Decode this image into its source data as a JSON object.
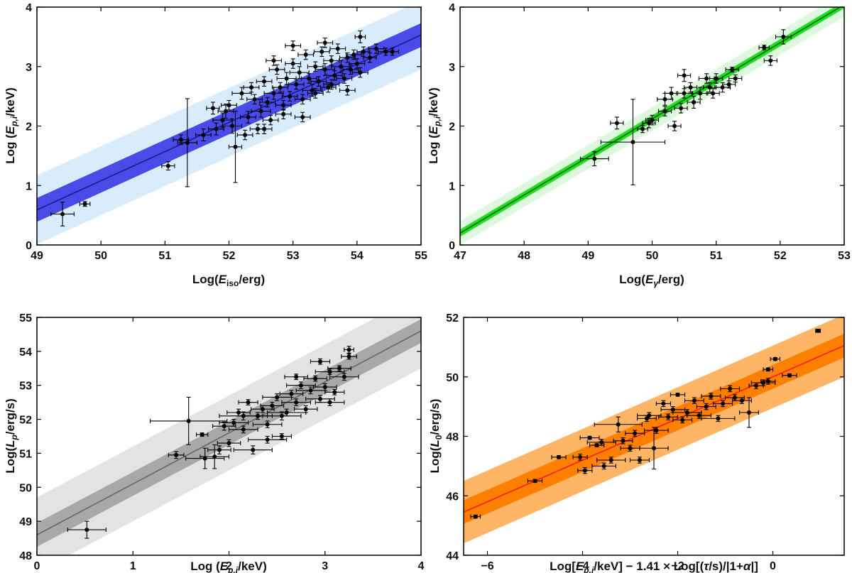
{
  "chart_data": [
    {
      "id": "amati",
      "type": "scatter",
      "xlabel": {
        "pre": "Log(",
        "main": "E",
        "sub": "iso",
        "post": "/erg)"
      },
      "ylabel": {
        "pre": "Log (",
        "main": "E",
        "sub": "p,i",
        "post": "/keV)"
      },
      "xlim": [
        49,
        55
      ],
      "ylim": [
        0,
        4
      ],
      "xticks": [
        49,
        50,
        51,
        52,
        53,
        54,
        55
      ],
      "yticks": [
        0,
        1,
        2,
        3,
        4
      ],
      "fit": {
        "slope": 0.49,
        "intercept": 0.59,
        "x0": 49,
        "inner_halfwidth": 0.2,
        "outer_halfwidth": 0.58,
        "color": "#1a1a8c"
      },
      "colors": {
        "inner": "#4a4ae8",
        "outer": "#d9ecfb"
      },
      "points": [
        [
          49.4,
          0.52,
          0.18,
          0.2
        ],
        [
          49.75,
          0.69,
          0.08,
          0.04
        ],
        [
          51.05,
          1.33,
          0.1,
          0.07
        ],
        [
          51.35,
          1.72,
          0.15,
          0.74
        ],
        [
          51.25,
          1.77,
          0.12,
          0.08
        ],
        [
          52.1,
          1.65,
          0.1,
          0.6
        ],
        [
          51.6,
          1.85,
          0.12,
          0.1
        ],
        [
          51.8,
          1.95,
          0.12,
          0.1
        ],
        [
          51.9,
          2.1,
          0.15,
          0.12
        ],
        [
          51.75,
          2.3,
          0.1,
          0.1
        ],
        [
          51.95,
          2.25,
          0.12,
          0.12
        ],
        [
          52.05,
          2.0,
          0.15,
          0.12
        ],
        [
          52.2,
          2.55,
          0.15,
          0.1
        ],
        [
          52.3,
          2.15,
          0.12,
          0.1
        ],
        [
          52.4,
          2.45,
          0.12,
          0.08
        ],
        [
          52.45,
          1.95,
          0.12,
          0.08
        ],
        [
          52.35,
          2.65,
          0.12,
          0.08
        ],
        [
          52.5,
          2.25,
          0.15,
          0.1
        ],
        [
          52.55,
          2.75,
          0.12,
          0.08
        ],
        [
          52.6,
          2.4,
          0.12,
          0.08
        ],
        [
          52.7,
          2.55,
          0.15,
          0.1
        ],
        [
          52.75,
          2.95,
          0.12,
          0.08
        ],
        [
          52.8,
          2.65,
          0.12,
          0.08
        ],
        [
          52.85,
          2.35,
          0.12,
          0.08
        ],
        [
          52.9,
          2.8,
          0.15,
          0.1
        ],
        [
          52.95,
          2.5,
          0.12,
          0.08
        ],
        [
          53.0,
          3.05,
          0.12,
          0.08
        ],
        [
          53.05,
          2.7,
          0.12,
          0.08
        ],
        [
          53.1,
          2.9,
          0.15,
          0.1
        ],
        [
          53.15,
          2.45,
          0.12,
          0.08
        ],
        [
          53.2,
          3.2,
          0.12,
          0.08
        ],
        [
          53.25,
          2.8,
          0.12,
          0.08
        ],
        [
          53.3,
          2.6,
          0.15,
          0.1
        ],
        [
          53.35,
          3.0,
          0.12,
          0.08
        ],
        [
          53.4,
          2.75,
          0.12,
          0.08
        ],
        [
          53.45,
          3.25,
          0.12,
          0.08
        ],
        [
          53.5,
          2.95,
          0.15,
          0.1
        ],
        [
          53.55,
          2.65,
          0.12,
          0.08
        ],
        [
          53.6,
          3.1,
          0.12,
          0.08
        ],
        [
          53.65,
          2.85,
          0.12,
          0.08
        ],
        [
          53.7,
          3.3,
          0.12,
          0.08
        ],
        [
          53.75,
          3.0,
          0.15,
          0.1
        ],
        [
          53.8,
          2.8,
          0.12,
          0.08
        ],
        [
          53.85,
          3.15,
          0.12,
          0.08
        ],
        [
          53.9,
          2.95,
          0.12,
          0.08
        ],
        [
          53.95,
          3.2,
          0.12,
          0.08
        ],
        [
          54.0,
          3.05,
          0.12,
          0.08
        ],
        [
          54.05,
          2.9,
          0.12,
          0.08
        ],
        [
          54.1,
          3.25,
          0.1,
          0.08
        ],
        [
          54.2,
          3.15,
          0.1,
          0.08
        ],
        [
          54.3,
          3.3,
          0.12,
          0.08
        ],
        [
          54.45,
          3.25,
          0.12,
          0.06
        ],
        [
          54.55,
          3.25,
          0.1,
          0.06
        ],
        [
          54.05,
          3.5,
          0.08,
          0.1
        ],
        [
          52.65,
          2.1,
          0.12,
          0.08
        ],
        [
          52.85,
          2.2,
          0.12,
          0.08
        ],
        [
          53.15,
          2.15,
          0.12,
          0.08
        ],
        [
          52.25,
          1.85,
          0.12,
          0.08
        ],
        [
          52.55,
          1.95,
          0.12,
          0.08
        ],
        [
          52.0,
          2.35,
          0.12,
          0.08
        ],
        [
          53.35,
          2.55,
          0.12,
          0.08
        ],
        [
          53.6,
          2.7,
          0.12,
          0.08
        ],
        [
          53.85,
          2.6,
          0.12,
          0.08
        ],
        [
          52.7,
          3.1,
          0.12,
          0.08
        ],
        [
          53.0,
          3.35,
          0.12,
          0.08
        ],
        [
          53.5,
          3.4,
          0.12,
          0.08
        ]
      ]
    },
    {
      "id": "ghirlanda",
      "type": "scatter",
      "xlabel": {
        "pre": "Log(",
        "main": "E",
        "sub": "γ",
        "post": "/erg)"
      },
      "ylabel": {
        "pre": "Log (",
        "main": "E",
        "sub": "p,i",
        "post": "/keV)"
      },
      "xlim": [
        47,
        53
      ],
      "ylim": [
        0,
        4
      ],
      "xticks": [
        47,
        48,
        49,
        50,
        51,
        52,
        53
      ],
      "yticks": [
        0,
        1,
        2,
        3,
        4
      ],
      "fit": {
        "slope": 0.64,
        "intercept": 0.2,
        "x0": 47,
        "inner_halfwidth": 0.06,
        "outer_halfwidth": 0.2,
        "color": "#0a6a0a"
      },
      "colors": {
        "inner": "#22dd22",
        "outer": "#ddf8dd"
      },
      "points": [
        [
          49.1,
          1.45,
          0.22,
          0.12
        ],
        [
          49.7,
          1.73,
          0.5,
          0.72
        ],
        [
          49.45,
          2.05,
          0.1,
          0.1
        ],
        [
          49.85,
          1.95,
          0.08,
          0.06
        ],
        [
          49.95,
          2.05,
          0.1,
          0.08
        ],
        [
          50.0,
          2.1,
          0.1,
          0.08
        ],
        [
          50.2,
          2.45,
          0.12,
          0.1
        ],
        [
          50.3,
          2.55,
          0.1,
          0.1
        ],
        [
          50.45,
          2.3,
          0.1,
          0.08
        ],
        [
          50.5,
          2.55,
          0.12,
          0.08
        ],
        [
          50.6,
          2.65,
          0.1,
          0.08
        ],
        [
          50.65,
          2.4,
          0.1,
          0.1
        ],
        [
          50.75,
          2.55,
          0.12,
          0.1
        ],
        [
          50.85,
          2.8,
          0.12,
          0.08
        ],
        [
          50.9,
          2.65,
          0.1,
          0.08
        ],
        [
          50.95,
          2.55,
          0.1,
          0.08
        ],
        [
          51.0,
          2.8,
          0.1,
          0.08
        ],
        [
          51.1,
          2.65,
          0.12,
          0.08
        ],
        [
          51.2,
          2.7,
          0.1,
          0.06
        ],
        [
          51.25,
          2.95,
          0.1,
          0.04
        ],
        [
          51.3,
          2.8,
          0.1,
          0.06
        ],
        [
          51.75,
          3.32,
          0.08,
          0.04
        ],
        [
          51.85,
          3.1,
          0.1,
          0.08
        ],
        [
          52.05,
          3.5,
          0.12,
          0.12
        ],
        [
          50.35,
          2.0,
          0.1,
          0.08
        ],
        [
          50.5,
          2.85,
          0.1,
          0.1
        ],
        [
          50.2,
          2.25,
          0.1,
          0.08
        ]
      ]
    },
    {
      "id": "yonetoku",
      "type": "scatter",
      "xlabel": {
        "pre": "Log (",
        "main": "E",
        "sub": "p,i",
        "post": "/keV)"
      },
      "ylabel": {
        "pre": "Log(",
        "main": "L",
        "sub": "p",
        "post": "/erg/s)"
      },
      "xlim": [
        0,
        4
      ],
      "ylim": [
        48,
        55
      ],
      "xticks": [
        0,
        1,
        2,
        3,
        4
      ],
      "yticks": [
        48,
        49,
        50,
        51,
        52,
        53,
        54,
        55
      ],
      "fit": {
        "slope": 1.5,
        "intercept": 48.6,
        "x0": 0,
        "inner_halfwidth": 0.35,
        "outer_halfwidth": 1.1,
        "color": "#666666"
      },
      "colors": {
        "inner": "#a8a8a8",
        "outer": "#e3e3e3"
      },
      "points": [
        [
          0.52,
          48.75,
          0.2,
          0.25
        ],
        [
          1.45,
          50.95,
          0.08,
          0.1
        ],
        [
          1.58,
          51.95,
          0.4,
          0.7
        ],
        [
          1.72,
          51.55,
          0.06,
          0.05
        ],
        [
          1.75,
          50.85,
          0.2,
          0.3
        ],
        [
          1.85,
          50.9,
          0.15,
          0.35
        ],
        [
          1.9,
          51.1,
          0.12,
          0.12
        ],
        [
          1.95,
          51.8,
          0.12,
          0.12
        ],
        [
          2.0,
          51.3,
          0.12,
          0.1
        ],
        [
          2.05,
          51.9,
          0.15,
          0.1
        ],
        [
          2.1,
          52.2,
          0.12,
          0.1
        ],
        [
          2.15,
          51.7,
          0.15,
          0.1
        ],
        [
          2.2,
          52.5,
          0.1,
          0.08
        ],
        [
          2.25,
          51.1,
          0.2,
          0.12
        ],
        [
          2.3,
          52.1,
          0.15,
          0.1
        ],
        [
          2.35,
          52.3,
          0.12,
          0.1
        ],
        [
          2.4,
          51.85,
          0.15,
          0.1
        ],
        [
          2.45,
          52.4,
          0.12,
          0.1
        ],
        [
          2.5,
          52.65,
          0.15,
          0.1
        ],
        [
          2.55,
          51.5,
          0.1,
          0.08
        ],
        [
          2.6,
          52.2,
          0.2,
          0.1
        ],
        [
          2.65,
          52.75,
          0.12,
          0.1
        ],
        [
          2.7,
          52.5,
          0.15,
          0.1
        ],
        [
          2.75,
          53.0,
          0.15,
          0.1
        ],
        [
          2.8,
          52.3,
          0.12,
          0.1
        ],
        [
          2.85,
          52.85,
          0.15,
          0.1
        ],
        [
          2.9,
          53.2,
          0.12,
          0.08
        ],
        [
          2.95,
          52.6,
          0.15,
          0.1
        ],
        [
          3.0,
          52.95,
          0.12,
          0.1
        ],
        [
          3.05,
          53.4,
          0.15,
          0.08
        ],
        [
          3.1,
          52.8,
          0.1,
          0.08
        ],
        [
          3.15,
          53.5,
          0.12,
          0.08
        ],
        [
          3.2,
          53.25,
          0.15,
          0.1
        ],
        [
          3.25,
          54.05,
          0.05,
          0.1
        ],
        [
          3.25,
          53.85,
          0.08,
          0.08
        ],
        [
          3.05,
          52.5,
          0.15,
          0.1
        ],
        [
          2.4,
          51.4,
          0.2,
          0.1
        ],
        [
          2.55,
          52.1,
          0.2,
          0.12
        ],
        [
          2.15,
          52.1,
          0.25,
          0.12
        ],
        [
          2.7,
          53.25,
          0.12,
          0.08
        ],
        [
          2.95,
          53.7,
          0.1,
          0.08
        ]
      ]
    },
    {
      "id": "combo",
      "type": "scatter",
      "xlabel": {
        "text": "Log[E_p,i/keV] − 1.41 × Log[(τ/s)/|1+α|]",
        "pre": "Log[",
        "main": "E",
        "sub": "p,i",
        "post": "/keV] − 1.41 × Log[(",
        "tau": "τ",
        "tail": "/s)/|1+",
        "alpha": "α",
        "end": "|]"
      },
      "ylabel": {
        "pre": "Log(",
        "main": "L",
        "sub": "0",
        "post": "/erg/s)"
      },
      "xlim": [
        -6.5,
        1.5
      ],
      "ylim": [
        44,
        52
      ],
      "xticks": [
        -6,
        -4,
        -2,
        0
      ],
      "yticks": [
        44,
        46,
        48,
        50,
        52
      ],
      "fit": {
        "slope": 0.7,
        "intercept": 45.45,
        "x0": -6.5,
        "inner_halfwidth": 0.4,
        "outer_halfwidth": 1.05,
        "color": "#ff1a1a"
      },
      "colors": {
        "inner": "#ff8000",
        "outer": "#ffb566"
      },
      "points": [
        [
          -6.25,
          45.3,
          0.1,
          0.05
        ],
        [
          -5.0,
          46.5,
          0.15,
          0.05
        ],
        [
          -4.5,
          47.3,
          0.15,
          0.05
        ],
        [
          -4.05,
          47.3,
          0.15,
          0.1
        ],
        [
          -3.95,
          46.85,
          0.15,
          0.1
        ],
        [
          -3.85,
          47.95,
          0.2,
          0.05
        ],
        [
          -3.7,
          47.7,
          0.15,
          0.05
        ],
        [
          -3.55,
          47.0,
          0.25,
          0.1
        ],
        [
          -3.4,
          47.2,
          0.3,
          0.1
        ],
        [
          -3.25,
          48.4,
          0.5,
          0.25
        ],
        [
          -3.15,
          47.85,
          0.2,
          0.1
        ],
        [
          -3.0,
          47.6,
          0.2,
          0.1
        ],
        [
          -2.9,
          48.1,
          0.2,
          0.1
        ],
        [
          -2.8,
          47.2,
          0.2,
          0.1
        ],
        [
          -2.65,
          48.6,
          0.2,
          0.1
        ],
        [
          -2.5,
          47.6,
          0.3,
          0.7
        ],
        [
          -2.45,
          48.2,
          0.25,
          0.1
        ],
        [
          -2.3,
          49.1,
          0.15,
          0.1
        ],
        [
          -2.2,
          48.65,
          0.2,
          0.1
        ],
        [
          -2.1,
          48.9,
          0.25,
          0.1
        ],
        [
          -2.0,
          49.4,
          0.15,
          0.05
        ],
        [
          -1.9,
          48.55,
          0.2,
          0.1
        ],
        [
          -1.8,
          48.8,
          0.3,
          0.1
        ],
        [
          -1.65,
          49.2,
          0.2,
          0.1
        ],
        [
          -1.55,
          48.7,
          0.25,
          0.1
        ],
        [
          -1.4,
          49.0,
          0.2,
          0.1
        ],
        [
          -1.3,
          49.35,
          0.2,
          0.1
        ],
        [
          -1.15,
          48.6,
          0.35,
          0.1
        ],
        [
          -1.05,
          49.1,
          0.2,
          0.1
        ],
        [
          -0.9,
          49.6,
          0.2,
          0.1
        ],
        [
          -0.8,
          49.3,
          0.2,
          0.1
        ],
        [
          -0.65,
          49.2,
          0.2,
          0.1
        ],
        [
          -0.5,
          48.8,
          0.2,
          0.5
        ],
        [
          -0.35,
          49.7,
          0.15,
          0.1
        ],
        [
          -0.2,
          49.8,
          0.25,
          0.1
        ],
        [
          -0.1,
          50.25,
          0.1,
          0.05
        ],
        [
          0.05,
          50.6,
          0.1,
          0.05
        ],
        [
          0.35,
          50.05,
          0.15,
          0.05
        ],
        [
          0.95,
          51.55,
          0.05,
          0.05
        ],
        [
          -0.1,
          49.85,
          0.15,
          0.1
        ],
        [
          -2.6,
          48.7,
          0.25,
          0.1
        ],
        [
          -3.6,
          47.8,
          0.3,
          0.1
        ]
      ]
    }
  ]
}
